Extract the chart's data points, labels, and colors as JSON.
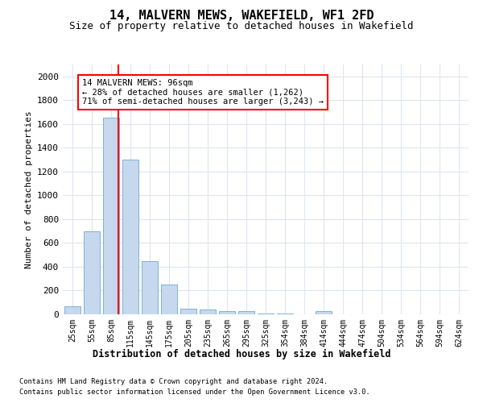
{
  "title": "14, MALVERN MEWS, WAKEFIELD, WF1 2FD",
  "subtitle": "Size of property relative to detached houses in Wakefield",
  "xlabel": "Distribution of detached houses by size in Wakefield",
  "ylabel": "Number of detached properties",
  "categories": [
    "25sqm",
    "55sqm",
    "85sqm",
    "115sqm",
    "145sqm",
    "175sqm",
    "205sqm",
    "235sqm",
    "265sqm",
    "295sqm",
    "325sqm",
    "354sqm",
    "384sqm",
    "414sqm",
    "444sqm",
    "474sqm",
    "504sqm",
    "534sqm",
    "564sqm",
    "594sqm",
    "624sqm"
  ],
  "values": [
    65,
    700,
    1650,
    1300,
    450,
    250,
    50,
    38,
    30,
    25,
    10,
    10,
    0,
    25,
    0,
    0,
    0,
    0,
    0,
    0,
    0
  ],
  "bar_color": "#c5d8ee",
  "bar_edge_color": "#6fa8d4",
  "vline_color": "red",
  "vline_xindex": 2.37,
  "annotation_text": "14 MALVERN MEWS: 96sqm\n← 28% of detached houses are smaller (1,262)\n71% of semi-detached houses are larger (3,243) →",
  "annotation_box_color": "white",
  "annotation_box_edge_color": "red",
  "ylim": [
    0,
    2100
  ],
  "yticks": [
    0,
    200,
    400,
    600,
    800,
    1000,
    1200,
    1400,
    1600,
    1800,
    2000
  ],
  "footer_line1": "Contains HM Land Registry data © Crown copyright and database right 2024.",
  "footer_line2": "Contains public sector information licensed under the Open Government Licence v3.0.",
  "bg_color": "#ffffff",
  "grid_color": "#dce6f0",
  "annot_xleft": 0.5,
  "annot_ytop": 1980
}
